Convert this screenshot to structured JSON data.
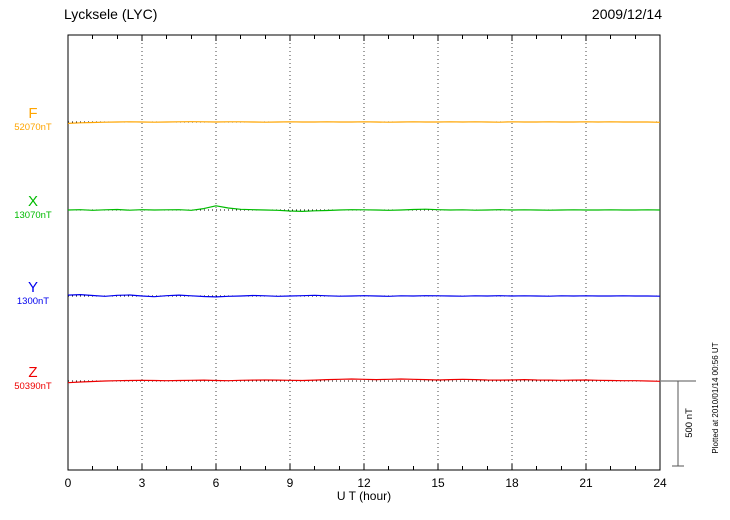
{
  "chart_data": {
    "type": "line",
    "title": "Lycksele (LYC)",
    "date": "2009/12/14",
    "xlabel": "U T (hour)",
    "ylabel": "",
    "x_range": [
      0,
      24
    ],
    "x_ticks": [
      0,
      3,
      6,
      9,
      12,
      15,
      18,
      21,
      24
    ],
    "x_minor_tick_step_hours": 1,
    "x_sample_step_hours": 0.5,
    "grid": "vertical-dotted",
    "legend_position": "left-of-traces",
    "scale_bar": {
      "label": "500 nT",
      "nT": 500
    },
    "plotted_at": "Plotted at 2010/01/14 00:56 UT",
    "series": [
      {
        "name": "F",
        "baseline_label": "52070nT",
        "baseline_nT": 52070,
        "color": "#FFA500",
        "offsets_nT": [
          -8,
          -5,
          -3,
          -1,
          0,
          1,
          0,
          -1,
          0,
          1,
          2,
          1,
          0,
          1,
          1,
          0,
          -1,
          0,
          1,
          0,
          0,
          1,
          0,
          0,
          1,
          0,
          -1,
          0,
          1,
          0,
          0,
          1,
          0,
          1,
          0,
          -1,
          1,
          0,
          0,
          1,
          0,
          0,
          1,
          0,
          1,
          0,
          0,
          0,
          -2
        ]
      },
      {
        "name": "X",
        "baseline_label": "13070nT",
        "baseline_nT": 13070,
        "color": "#00BB00",
        "offsets_nT": [
          0,
          2,
          -2,
          1,
          3,
          -1,
          2,
          0,
          1,
          2,
          -2,
          8,
          25,
          12,
          4,
          2,
          0,
          -2,
          -6,
          -8,
          -5,
          -3,
          0,
          2,
          1,
          0,
          -2,
          0,
          3,
          5,
          2,
          0,
          1,
          -1,
          0,
          2,
          0,
          1,
          0,
          -1,
          0,
          1,
          0,
          0,
          1,
          0,
          0,
          1,
          0
        ]
      },
      {
        "name": "Y",
        "baseline_label": "1300nT",
        "baseline_nT": 1300,
        "color": "#0000EE",
        "offsets_nT": [
          5,
          8,
          3,
          -2,
          4,
          6,
          0,
          -4,
          2,
          5,
          1,
          -3,
          -5,
          -2,
          0,
          3,
          1,
          -2,
          0,
          2,
          4,
          1,
          -1,
          0,
          2,
          0,
          -2,
          1,
          0,
          2,
          1,
          0,
          -1,
          1,
          0,
          2,
          0,
          1,
          0,
          -1,
          1,
          0,
          1,
          0,
          0,
          1,
          0,
          0,
          -1
        ]
      },
      {
        "name": "Z",
        "baseline_label": "50390nT",
        "baseline_nT": 50390,
        "color": "#EE0000",
        "offsets_nT": [
          -10,
          -6,
          -3,
          0,
          2,
          3,
          4,
          3,
          2,
          3,
          4,
          5,
          3,
          2,
          4,
          5,
          6,
          5,
          4,
          3,
          5,
          8,
          10,
          12,
          10,
          8,
          10,
          12,
          10,
          8,
          6,
          8,
          10,
          8,
          6,
          5,
          6,
          8,
          6,
          5,
          4,
          5,
          6,
          4,
          3,
          2,
          2,
          0,
          -2
        ]
      }
    ]
  }
}
